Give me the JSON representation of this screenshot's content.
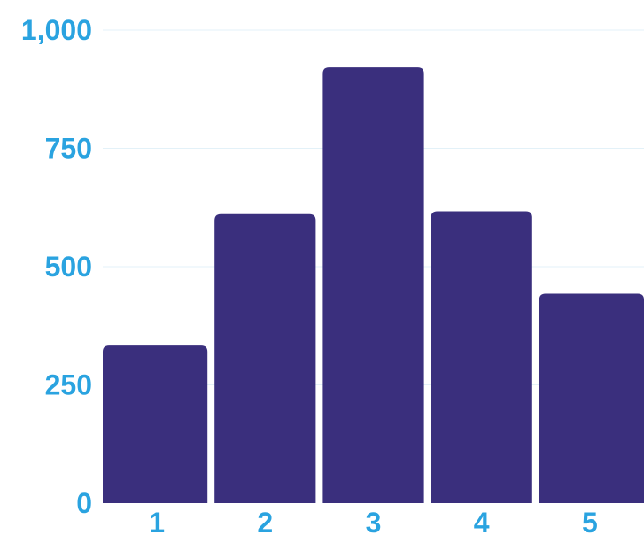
{
  "chart_data": {
    "type": "bar",
    "title": "",
    "xlabel": "",
    "ylabel": "",
    "categories": [
      "1",
      "2",
      "3",
      "4",
      "5"
    ],
    "values": [
      333,
      611,
      921,
      617,
      443
    ],
    "ylim": [
      0,
      1000
    ],
    "yticks": [
      0,
      250,
      500,
      750,
      1000
    ],
    "ytick_labels": [
      "0",
      "250",
      "500",
      "750",
      "1,000"
    ],
    "grid": true,
    "legend": "none"
  },
  "colors": {
    "bar": "#3a2f7d",
    "tick_label": "#2aa3e0",
    "grid": "#e3f1f8"
  }
}
